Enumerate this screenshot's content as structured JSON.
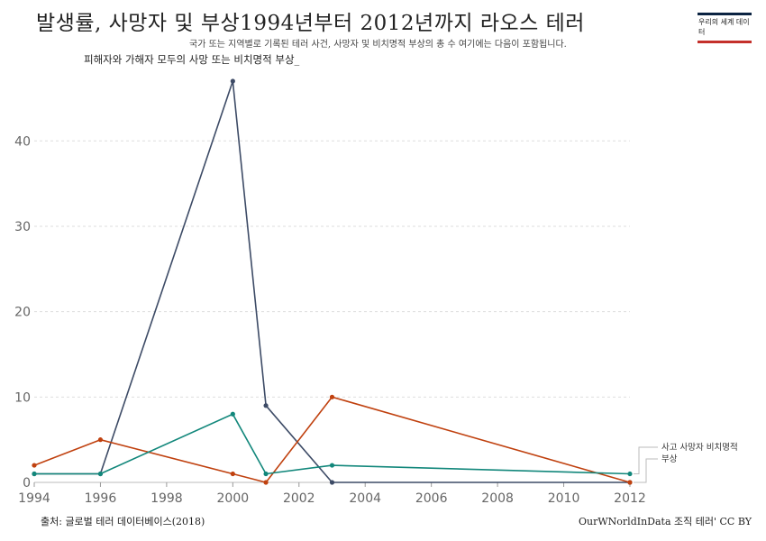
{
  "header": {
    "title": "발생률, 사망자 및 부상1994년부터 2012년까지 라오스 테러",
    "subtitle": "국가 또는 지역별로 기록된 테러 사건, 사망자 및 비치명적 부상의 총 수 여기에는 다음이 포함됩니다.",
    "note": "피해자와 가해자 모두의 사망 또는 비치명적 부상_"
  },
  "logo": {
    "text": "우리의 세계 데이터"
  },
  "footer": {
    "source": "출처: 글로벌 테러 데이터베이스(2018)",
    "license": "OurWNorldInData 조직 테러' CC BY"
  },
  "chart_data": {
    "type": "line",
    "x_ticks": [
      1994,
      1996,
      1998,
      2000,
      2002,
      2004,
      2006,
      2008,
      2010,
      2012
    ],
    "y_ticks": [
      0,
      10,
      20,
      30,
      40
    ],
    "xlim": [
      1994,
      2012
    ],
    "ylim": [
      0,
      47
    ],
    "grid": "horizontal dashed",
    "legend_position": "right",
    "series": [
      {
        "color": "#3d4b66",
        "points": [
          [
            1994,
            1
          ],
          [
            1996,
            1
          ],
          [
            2000,
            47
          ],
          [
            2001,
            9
          ],
          [
            2003,
            0
          ],
          [
            2012,
            0
          ]
        ]
      },
      {
        "color": "#c0410f",
        "points": [
          [
            1994,
            2
          ],
          [
            1996,
            5
          ],
          [
            2000,
            1
          ],
          [
            2001,
            0
          ],
          [
            2003,
            10
          ],
          [
            2012,
            0
          ]
        ]
      },
      {
        "color": "#12877b",
        "points": [
          [
            1994,
            1
          ],
          [
            1996,
            1
          ],
          [
            2000,
            8
          ],
          [
            2001,
            1
          ],
          [
            2003,
            2
          ],
          [
            2012,
            1
          ]
        ]
      }
    ],
    "legend": [
      {
        "label": "사고 사망자 비치명적",
        "series_index": 2
      },
      {
        "label": "부상",
        "series_index": 1
      }
    ]
  }
}
